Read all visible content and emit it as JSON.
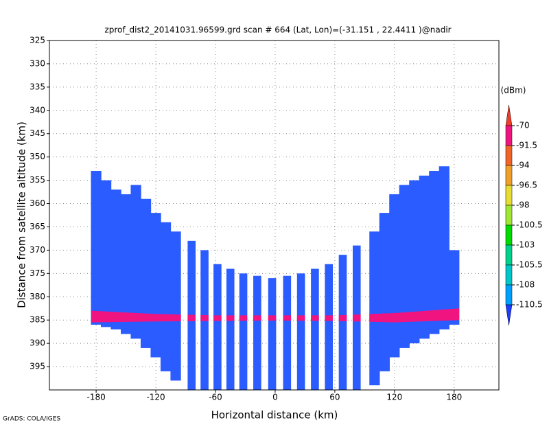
{
  "chart_data": {
    "type": "swath",
    "title": "zprof_dist2_20141031.96599.grd  scan # 664  (Lat, Lon)=(-31.151 , 22.4411 )@nadir",
    "xlabel": "Horizontal distance (km)",
    "ylabel": "Distance from satellite altitude (km)",
    "footer": "GrADS: COLA/IGES",
    "xlim": [
      -227,
      225
    ],
    "xticks": [
      -180,
      -120,
      -60,
      0,
      60,
      120,
      180
    ],
    "ylim": [
      325,
      400
    ],
    "yticks": [
      325,
      330,
      335,
      340,
      345,
      350,
      355,
      360,
      365,
      370,
      375,
      380,
      385,
      390,
      395
    ],
    "y_inverted": true,
    "grid": true,
    "columns": {
      "x": [
        -180,
        -170,
        -160,
        -150,
        -140,
        -130,
        -120,
        -110,
        -100,
        -84,
        -71,
        -58,
        -45,
        -32,
        -18,
        -3,
        12,
        26,
        40,
        54,
        68,
        82,
        100,
        110,
        120,
        130,
        140,
        150,
        160,
        170,
        180
      ],
      "width": [
        10.5,
        10.5,
        10.5,
        10.5,
        10.5,
        10.5,
        10.5,
        10.5,
        10.5,
        8,
        8,
        8,
        8,
        8,
        8,
        8,
        8,
        8,
        8,
        8,
        8,
        8,
        10.5,
        10.5,
        10.5,
        10.5,
        10.5,
        10.5,
        10.5,
        10.5,
        10.5
      ],
      "top": [
        353,
        355,
        357,
        358,
        356,
        359,
        362,
        364,
        366,
        368,
        370,
        373,
        374,
        375,
        375.5,
        376,
        375.5,
        375,
        374,
        373,
        371,
        369,
        366,
        362,
        358,
        356,
        355,
        354,
        353,
        352,
        370
      ],
      "bottom": [
        386,
        386.5,
        387,
        388,
        389,
        391,
        393,
        396,
        398,
        400,
        400,
        400,
        400,
        400,
        400,
        400,
        400,
        400,
        400,
        400,
        400,
        400,
        399,
        396,
        393,
        391,
        390,
        389,
        388,
        387,
        386
      ]
    },
    "column_color": "#2a5cff",
    "surface": {
      "x": [
        -185,
        -120,
        -60,
        0,
        60,
        120,
        185
      ],
      "top": [
        383,
        383.7,
        384,
        384,
        384,
        383.5,
        382.5
      ],
      "bottom": [
        385.5,
        385.3,
        385.2,
        385.1,
        385.2,
        385.5,
        385
      ]
    },
    "surface_color": "#f01480",
    "colorbar": {
      "unit": "(dBm)",
      "levels": [
        -70,
        -91.5,
        -94,
        -96.5,
        -98,
        -100.5,
        -103,
        -105.5,
        -108,
        -110.5
      ],
      "colors": [
        "#f03c28",
        "#f01480",
        "#f06428",
        "#f0a028",
        "#e6dc32",
        "#a0e632",
        "#00dc00",
        "#00d28c",
        "#00c8c8",
        "#00a0ff",
        "#1e3cff"
      ]
    }
  }
}
